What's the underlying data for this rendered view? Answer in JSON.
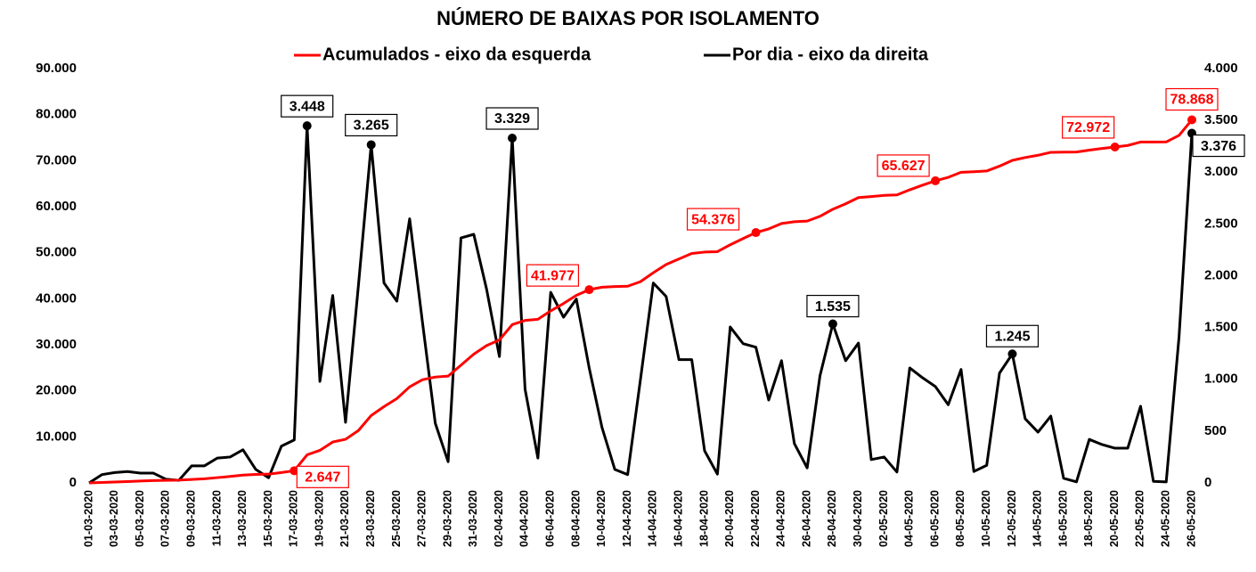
{
  "chart_data": {
    "type": "line",
    "title": "NÚMERO DE BAIXAS POR ISOLAMENTO",
    "categories": [
      "01-03-2020",
      null,
      "03-03-2020",
      null,
      "05-03-2020",
      null,
      "07-03-2020",
      null,
      "09-03-2020",
      null,
      "11-03-2020",
      null,
      "13-03-2020",
      null,
      "15-03-2020",
      null,
      "17-03-2020",
      null,
      "19-03-2020",
      null,
      "21-03-2020",
      null,
      "23-03-2020",
      null,
      "25-03-2020",
      null,
      "27-03-2020",
      null,
      "29-03-2020",
      null,
      "31-03-2020",
      null,
      "02-04-2020",
      null,
      "04-04-2020",
      null,
      "06-04-2020",
      null,
      "08-04-2020",
      null,
      "10-04-2020",
      null,
      "12-04-2020",
      null,
      "14-04-2020",
      null,
      "16-04-2020",
      null,
      "18-04-2020",
      null,
      "20-04-2020",
      null,
      "22-04-2020",
      null,
      "24-04-2020",
      null,
      "26-04-2020",
      null,
      "28-04-2020",
      null,
      "30-04-2020",
      null,
      "02-05-2020",
      null,
      "04-05-2020",
      null,
      "06-05-2020",
      null,
      "08-05-2020",
      null,
      "10-05-2020",
      null,
      "12-05-2020",
      null,
      "14-05-2020",
      null,
      "16-05-2020",
      null,
      "18-05-2020",
      null,
      "20-05-2020",
      null,
      "22-05-2020",
      null,
      "24-05-2020",
      null,
      "26-05-2020"
    ],
    "series": [
      {
        "name": "Acumulados - eixo da esquerda",
        "color": "#ff0000",
        "axis": "y",
        "values": [
          0,
          100,
          200,
          300,
          400,
          500,
          550,
          600,
          750,
          900,
          1150,
          1400,
          1700,
          1850,
          1900,
          2250,
          2647,
          6095,
          7075,
          8885,
          9470,
          11370,
          14635,
          16565,
          18320,
          20870,
          22420,
          22995,
          23200,
          25565,
          27965,
          29835,
          31055,
          34384,
          35289,
          35529,
          37369,
          38969,
          40744,
          41977,
          42512,
          42642,
          42722,
          43722,
          45652,
          47452,
          48642,
          49832,
          50142,
          50227,
          51732,
          53077,
          54376,
          55176,
          56356,
          56736,
          56881,
          57916,
          59451,
          60631,
          61981,
          62206,
          62456,
          62561,
          63671,
          64686,
          65627,
          66382,
          67477,
          67587,
          67757,
          68817,
          70062,
          70682,
          71172,
          71817,
          71862,
          71872,
          72292,
          72662,
          72972,
          73307,
          74047,
          74062,
          74072,
          75492,
          78868
        ],
        "value_labels": [
          null,
          null,
          null,
          null,
          null,
          null,
          null,
          null,
          null,
          null,
          null,
          null,
          null,
          null,
          null,
          null,
          "2.647",
          null,
          null,
          null,
          null,
          null,
          null,
          null,
          null,
          null,
          null,
          null,
          null,
          null,
          null,
          null,
          null,
          null,
          null,
          null,
          null,
          null,
          null,
          "41.977",
          null,
          null,
          null,
          null,
          null,
          null,
          null,
          null,
          null,
          null,
          null,
          null,
          "54.376",
          null,
          null,
          null,
          null,
          null,
          null,
          null,
          null,
          null,
          null,
          null,
          null,
          null,
          "65.627",
          null,
          null,
          null,
          null,
          null,
          null,
          null,
          null,
          null,
          null,
          null,
          null,
          null,
          "72.972",
          null,
          null,
          null,
          null,
          null,
          "78.868"
        ]
      },
      {
        "name": "Por dia - eixo da direita",
        "color": "#000000",
        "axis": "y2",
        "values": [
          0,
          80,
          100,
          110,
          95,
          95,
          35,
          25,
          165,
          165,
          240,
          250,
          320,
          130,
          50,
          355,
          415,
          3448,
          980,
          1810,
          585,
          1900,
          3265,
          1930,
          1755,
          2550,
          1550,
          575,
          205,
          2365,
          2400,
          1870,
          1220,
          3329,
          905,
          240,
          1840,
          1600,
          1775,
          1110,
          535,
          130,
          80,
          1000,
          1930,
          1800,
          1190,
          1190,
          310,
          85,
          1505,
          1345,
          1310,
          800,
          1180,
          380,
          145,
          1035,
          1535,
          1180,
          1350,
          225,
          250,
          105,
          1110,
          1015,
          930,
          755,
          1095,
          110,
          170,
          1060,
          1245,
          620,
          490,
          645,
          45,
          10,
          420,
          370,
          335,
          335,
          740,
          15,
          10,
          1410,
          3376
        ],
        "value_labels": [
          null,
          null,
          null,
          null,
          null,
          null,
          null,
          null,
          null,
          null,
          null,
          null,
          null,
          null,
          null,
          null,
          null,
          "3.448",
          null,
          null,
          null,
          null,
          "3.265",
          null,
          null,
          null,
          null,
          null,
          null,
          null,
          null,
          null,
          null,
          "3.329",
          null,
          null,
          null,
          null,
          null,
          null,
          null,
          null,
          null,
          null,
          null,
          null,
          null,
          null,
          null,
          null,
          null,
          null,
          null,
          null,
          null,
          null,
          null,
          null,
          "1.535",
          null,
          null,
          null,
          null,
          null,
          null,
          null,
          null,
          null,
          null,
          null,
          null,
          null,
          "1.245",
          null,
          null,
          null,
          null,
          null,
          null,
          null,
          null,
          null,
          null,
          null,
          null,
          null,
          "3.376"
        ]
      }
    ],
    "ylim": [
      0,
      90000
    ],
    "yticks": [
      0,
      {
        "value": 10000,
        "label": "10.000"
      },
      {
        "value": 20000,
        "label": "20.000"
      },
      {
        "value": 30000,
        "label": "30.000"
      },
      {
        "value": 40000,
        "label": "40.000"
      },
      {
        "value": 50000,
        "label": "50.000"
      },
      {
        "value": 60000,
        "label": "60.000"
      },
      {
        "value": 70000,
        "label": "70.000"
      },
      {
        "value": 80000,
        "label": "80.000"
      },
      {
        "value": 90000,
        "label": "90.000"
      }
    ],
    "y2lim": [
      0,
      4000
    ],
    "y2ticks": [
      0,
      500,
      {
        "value": 1000,
        "label": "1.000"
      },
      {
        "value": 1500,
        "label": "1.500"
      },
      {
        "value": 2000,
        "label": "2.000"
      },
      {
        "value": 2500,
        "label": "2.500"
      },
      {
        "value": 3000,
        "label": "3.000"
      },
      {
        "value": 3500,
        "label": "3.500"
      },
      {
        "value": 4000,
        "label": "4.000"
      }
    ],
    "grid": false,
    "legend": "top"
  }
}
